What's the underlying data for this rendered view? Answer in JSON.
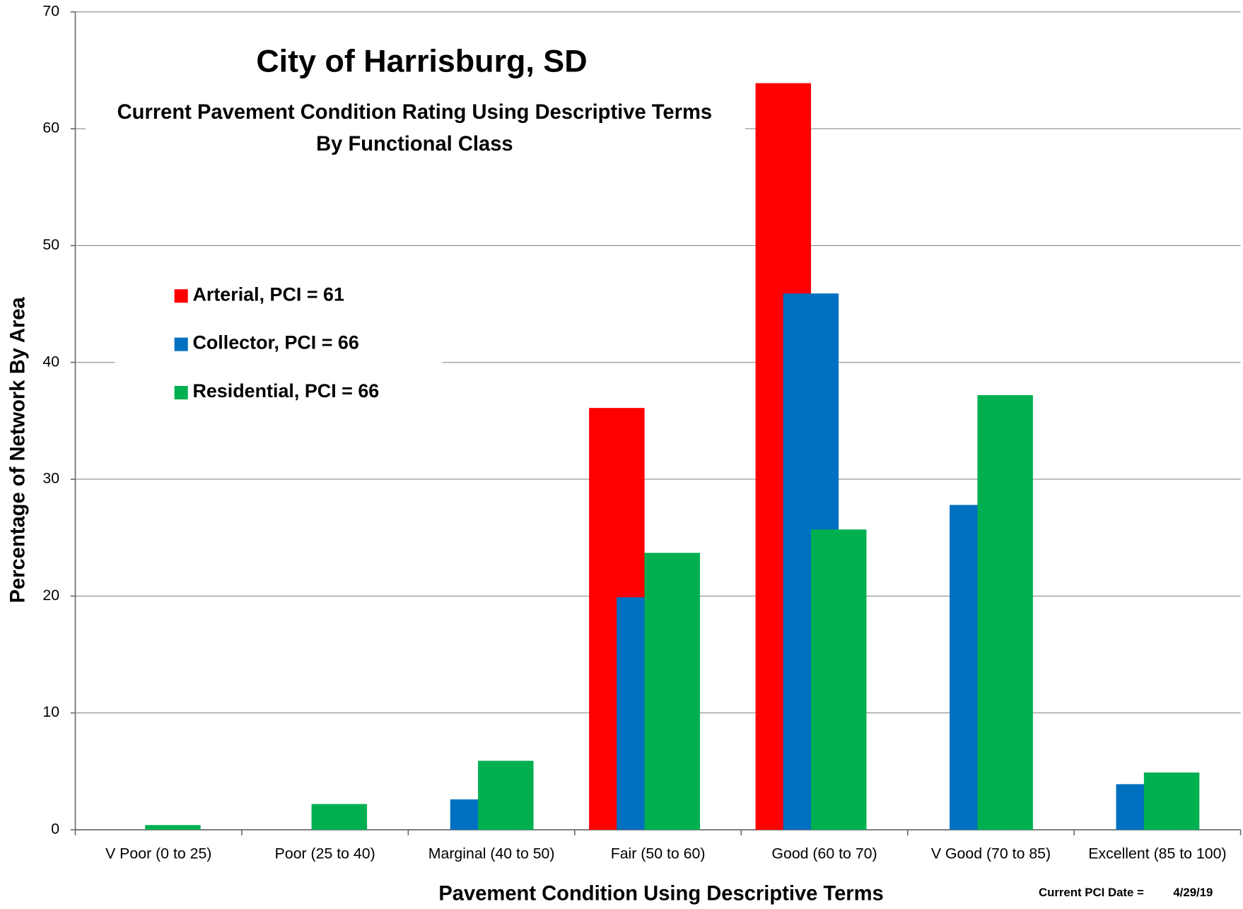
{
  "chart_data": {
    "type": "bar",
    "title": "City of Harrisburg, SD",
    "subtitle": [
      "Current Pavement Condition Rating Using Descriptive Terms",
      "By Functional Class"
    ],
    "xlabel": "Pavement Condition Using Descriptive Terms",
    "ylabel": "Percentage of Network By Area",
    "annotations": [
      "Current PCI Date =",
      "4/29/19"
    ],
    "categories": [
      "V Poor (0 to 25)",
      "Poor (25 to 40)",
      "Marginal (40 to 50)",
      "Fair (50 to 60)",
      "Good (60 to 70)",
      "V Good (70 to 85)",
      "Excellent (85 to 100)"
    ],
    "series": [
      {
        "name": "Arterial, PCI = 61",
        "color": "#ff0000",
        "values": [
          0,
          0,
          0,
          36.1,
          63.9,
          0,
          0
        ]
      },
      {
        "name": "Collector, PCI = 66",
        "color": "#0070c0",
        "values": [
          0,
          0,
          2.6,
          19.9,
          45.9,
          27.8,
          3.9
        ]
      },
      {
        "name": "Residential, PCI = 66",
        "color": "#00b050",
        "values": [
          0.4,
          2.2,
          5.9,
          23.7,
          25.7,
          37.2,
          4.9
        ]
      }
    ],
    "ylim": [
      0,
      70
    ],
    "yticks": [
      0,
      10,
      20,
      30,
      40,
      50,
      60,
      70
    ],
    "grid": true,
    "legend": "upper left"
  }
}
